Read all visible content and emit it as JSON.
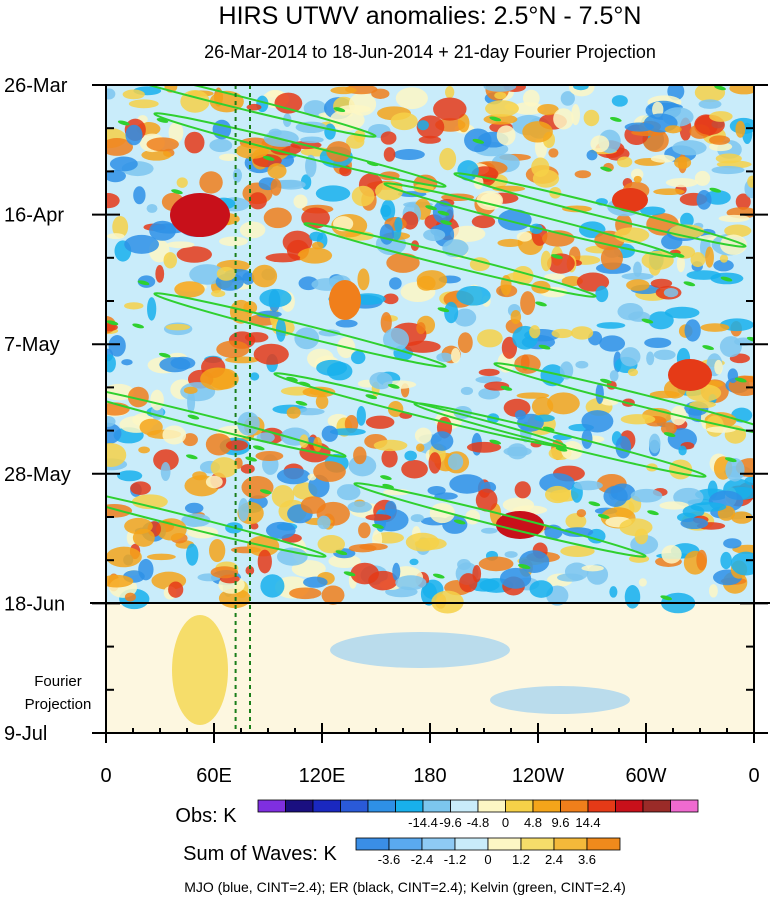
{
  "chart_data": {
    "type": "heatmap",
    "title": "HIRS UTWV anomalies: 2.5°N - 7.5°N",
    "subtitle": "26-Mar-2014 to 18-Jun-2014 + 21-day Fourier Projection",
    "y_tick_labels": [
      "26-Mar",
      "16-Apr",
      "7-May",
      "28-May",
      "18-Jun",
      "9-Jul"
    ],
    "projection_label_lines": [
      "Fourier",
      "Projection"
    ],
    "x_tick_labels": [
      "0",
      "60E",
      "120E",
      "180",
      "120W",
      "60W",
      "0"
    ],
    "x_range_deg": [
      0,
      360
    ],
    "y_range_days": [
      0,
      105
    ],
    "obs_end_day": 84,
    "vertical_markers_lon": [
      72,
      80
    ],
    "obs_colorbar": {
      "label": "Obs: K",
      "colors": [
        "#7f2fe0",
        "#1a0f80",
        "#1a28c0",
        "#2a5ad8",
        "#2e90e6",
        "#18b0ec",
        "#7cc6ee",
        "#c9ecfa",
        "#fdf7c4",
        "#f6d148",
        "#f4a51a",
        "#f07f1b",
        "#e53a17",
        "#c8101a",
        "#9a2b28",
        "#f06ad0"
      ],
      "tick_labels": [
        "-14.4",
        "-9.6",
        "-4.8",
        "0",
        "4.8",
        "9.6",
        "14.4"
      ]
    },
    "waves_colorbar": {
      "label": "Sum of Waves: K",
      "colors": [
        "#3a8ee6",
        "#5aa9ef",
        "#8ecaf4",
        "#c9ecfa",
        "#fdf7c4",
        "#f6dd6a",
        "#f4b93a",
        "#f08a1c"
      ],
      "tick_labels": [
        "-3.6",
        "-2.4",
        "-1.2",
        "0",
        "1.2",
        "2.4",
        "3.6"
      ]
    },
    "footnote": "MJO (blue, CINT=2.4); ER (black, CINT=2.4); Kelvin (green, CINT=2.4)",
    "series": [
      {
        "name": "MJO",
        "color": "#1a28c0"
      },
      {
        "name": "ER",
        "color": "#000000"
      },
      {
        "name": "Kelvin",
        "color": "#2fd02f"
      }
    ]
  }
}
